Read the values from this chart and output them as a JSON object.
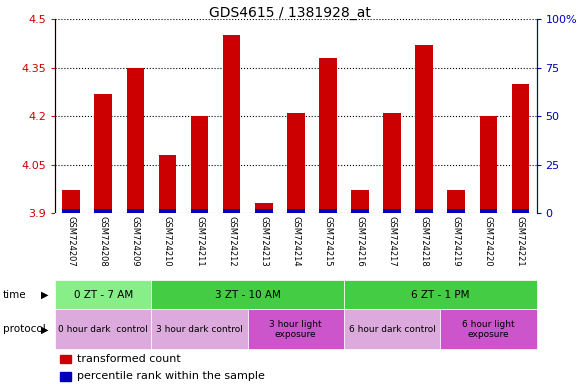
{
  "title": "GDS4615 / 1381928_at",
  "samples": [
    "GSM724207",
    "GSM724208",
    "GSM724209",
    "GSM724210",
    "GSM724211",
    "GSM724212",
    "GSM724213",
    "GSM724214",
    "GSM724215",
    "GSM724216",
    "GSM724217",
    "GSM724218",
    "GSM724219",
    "GSM724220",
    "GSM724221"
  ],
  "red_values": [
    3.97,
    4.27,
    4.35,
    4.08,
    4.2,
    4.45,
    3.93,
    4.21,
    4.38,
    3.97,
    4.21,
    4.42,
    3.97,
    4.2,
    4.3
  ],
  "blue_values": [
    2,
    2,
    2,
    2,
    2,
    2,
    2,
    2,
    2,
    2,
    2,
    2,
    2,
    2,
    2
  ],
  "ylim_left": [
    3.9,
    4.5
  ],
  "ylim_right": [
    0,
    100
  ],
  "yticks_left": [
    3.9,
    4.05,
    4.2,
    4.35,
    4.5
  ],
  "ytick_labels_left": [
    "3.9",
    "4.05",
    "4.2",
    "4.35",
    "4.5"
  ],
  "yticks_right": [
    0,
    25,
    50,
    75,
    100
  ],
  "ytick_labels_right": [
    "0",
    "25",
    "50",
    "75",
    "100%"
  ],
  "red_color": "#cc0000",
  "blue_color": "#0000bb",
  "bar_width": 0.55,
  "time_groups": [
    {
      "text": "0 ZT - 7 AM",
      "start": 0,
      "end": 3,
      "color": "#88ee88"
    },
    {
      "text": "3 ZT - 10 AM",
      "start": 3,
      "end": 9,
      "color": "#44cc44"
    },
    {
      "text": "6 ZT - 1 PM",
      "start": 9,
      "end": 15,
      "color": "#44cc44"
    }
  ],
  "protocol_groups": [
    {
      "text": "0 hour dark  control",
      "start": 0,
      "end": 3,
      "color": "#ddaadd"
    },
    {
      "text": "3 hour dark control",
      "start": 3,
      "end": 6,
      "color": "#ddaadd"
    },
    {
      "text": "3 hour light\nexposure",
      "start": 6,
      "end": 9,
      "color": "#cc55cc"
    },
    {
      "text": "6 hour dark control",
      "start": 9,
      "end": 12,
      "color": "#ddaadd"
    },
    {
      "text": "6 hour light\nexposure",
      "start": 12,
      "end": 15,
      "color": "#cc55cc"
    }
  ],
  "legend_red": "transformed count",
  "legend_blue": "percentile rank within the sample",
  "bg_color": "#ffffff",
  "label_area_color": "#cccccc",
  "time_label": "time",
  "protocol_label": "protocol"
}
